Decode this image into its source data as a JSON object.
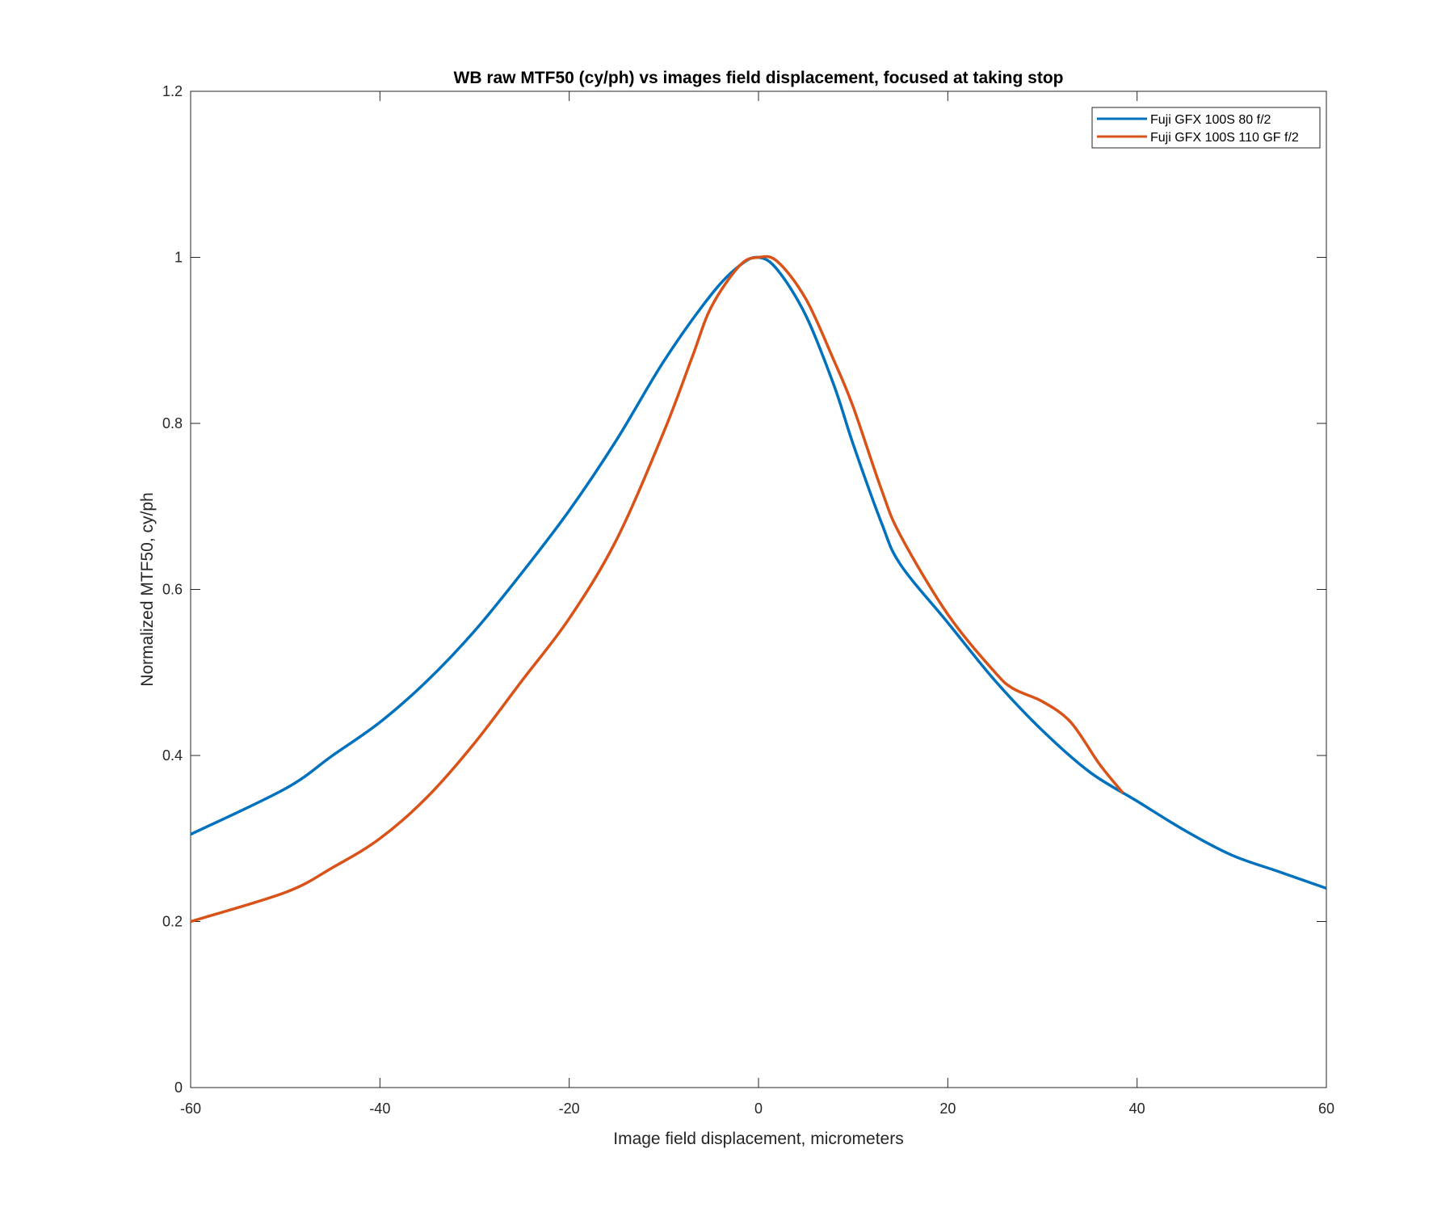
{
  "chart_data": {
    "type": "line",
    "title": "WB raw MTF50 (cy/ph) vs images field displacement, focused at taking stop",
    "xlabel": "Image field displacement, micrometers",
    "ylabel": "Normalized MTF50, cy/ph",
    "xlim": [
      -60,
      60
    ],
    "ylim": [
      0,
      1.2
    ],
    "xticks": [
      -60,
      -40,
      -20,
      0,
      20,
      40,
      60
    ],
    "xtick_labels": [
      "-60",
      "-40",
      "-20",
      "0",
      "20",
      "40",
      "60"
    ],
    "yticks": [
      0,
      0.2,
      0.4,
      0.6,
      0.8,
      1,
      1.2
    ],
    "ytick_labels": [
      "0",
      "0.2",
      "0.4",
      "0.6",
      "0.8",
      "1",
      "1.2"
    ],
    "grid": false,
    "legend_position": "top-right",
    "series": [
      {
        "name": "Fuji GFX 100S 80 f/2",
        "color": "#0072BD",
        "x": [
          -60,
          -50,
          -45,
          -40,
          -35,
          -30,
          -25,
          -20,
          -15,
          -10,
          -5,
          -2,
          0,
          2,
          5,
          8,
          10,
          13,
          15,
          20,
          25,
          30,
          35,
          40,
          45,
          50,
          55,
          60
        ],
        "y": [
          0.305,
          0.36,
          0.4,
          0.44,
          0.49,
          0.55,
          0.62,
          0.695,
          0.78,
          0.875,
          0.955,
          0.99,
          1.0,
          0.985,
          0.93,
          0.845,
          0.775,
          0.68,
          0.63,
          0.56,
          0.49,
          0.43,
          0.38,
          0.345,
          0.31,
          0.28,
          0.26,
          0.24
        ]
      },
      {
        "name": "Fuji GFX 100S 110 GF f/2",
        "color": "#D95319",
        "x": [
          -60,
          -50,
          -45,
          -40,
          -35,
          -30,
          -25,
          -20,
          -15,
          -10,
          -7,
          -5,
          -2,
          0,
          2,
          5,
          8,
          10,
          13,
          15,
          20,
          25,
          27,
          30,
          33,
          36,
          38.5
        ],
        "y": [
          0.2,
          0.235,
          0.265,
          0.3,
          0.35,
          0.415,
          0.49,
          0.565,
          0.66,
          0.79,
          0.88,
          0.94,
          0.99,
          1.0,
          0.995,
          0.95,
          0.875,
          0.82,
          0.72,
          0.665,
          0.57,
          0.5,
          0.48,
          0.465,
          0.44,
          0.39,
          0.355
        ]
      }
    ]
  }
}
